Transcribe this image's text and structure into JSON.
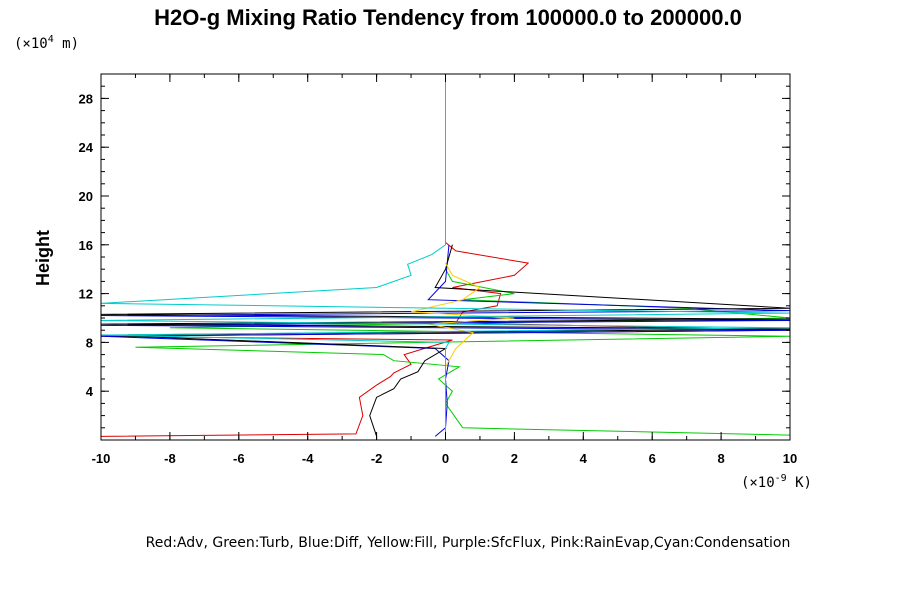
{
  "chart_data": {
    "type": "line",
    "title": "H2O-g Mixing Ratio Tendency from 100000.0 to 200000.0",
    "ylabel": "Height",
    "yunit_base": "(×10",
    "yunit_exp": "4",
    "yunit_tail": " m)",
    "xunit_base": "(×10",
    "xunit_exp": "-9",
    "xunit_tail": " K)",
    "xlim": [
      -10,
      10
    ],
    "ylim": [
      0,
      30
    ],
    "xticks": [
      -10,
      -8,
      -6,
      -4,
      -2,
      0,
      2,
      4,
      6,
      8,
      10
    ],
    "yticks": [
      4,
      8,
      12,
      16,
      20,
      24,
      28
    ],
    "legend_text": "Red:Adv, Green:Turb, Blue:Diff, Yellow:Fill, Purple:SfcFlux, Pink:RainEvap,Cyan:Condensation",
    "series": [
      {
        "color": "#dd0000",
        "x": [
          -10,
          -2.6,
          -2.4,
          -2.5,
          -2,
          -1.6,
          -1.5,
          -1,
          -1.2,
          -0.5,
          0.2,
          -10,
          10,
          0.3,
          0.5,
          1.5,
          1.6,
          0.2,
          2,
          2.4,
          0.3,
          0
        ],
        "y": [
          0.3,
          0.5,
          2,
          3.5,
          4.5,
          5.2,
          5.5,
          6.2,
          7.0,
          7.6,
          8.2,
          8.5,
          9.0,
          9.6,
          10.5,
          11.0,
          12.0,
          12.5,
          13.5,
          14.5,
          15.5,
          16.2
        ]
      },
      {
        "color": "#00cc00",
        "x": [
          10,
          0.5,
          0.3,
          0,
          0.2,
          -0.2,
          0.4,
          -1.5,
          -1.8,
          -9,
          10,
          -8,
          10,
          7,
          0.5,
          2,
          0.2,
          0
        ],
        "y": [
          0.4,
          1.0,
          1.8,
          3.0,
          4.0,
          5.0,
          6.0,
          6.5,
          7.0,
          7.6,
          8.5,
          9.2,
          10.0,
          10.8,
          11.5,
          12.0,
          13.0,
          14.0
        ]
      },
      {
        "color": "#0000dd",
        "x": [
          -0.3,
          0,
          0.05,
          0,
          0.1,
          -0.3,
          -10,
          10,
          -10,
          10,
          -10,
          10,
          -0.5,
          0,
          0.1
        ],
        "y": [
          0.3,
          1.0,
          3.0,
          5.0,
          6.5,
          7.5,
          8.5,
          9.0,
          9.4,
          9.8,
          10.2,
          10.6,
          11.5,
          13.0,
          16.0
        ]
      },
      {
        "color": "#000000",
        "x": [
          -2,
          -2.2,
          -2.0,
          -1.5,
          -1.3,
          -0.8,
          -0.6,
          0,
          -10,
          10,
          -10,
          10,
          -10,
          10,
          -0.3,
          0,
          0.2
        ],
        "y": [
          0.3,
          2.0,
          3.5,
          4.2,
          5.0,
          5.6,
          6.5,
          7.5,
          8.6,
          9.1,
          9.5,
          9.9,
          10.3,
          10.8,
          12.5,
          14.0,
          16.0
        ]
      },
      {
        "color": "#ffcc00",
        "x": [
          0,
          0.3,
          0.8,
          -0.5,
          2,
          -1,
          0.5,
          1,
          0.2,
          0
        ],
        "y": [
          6.0,
          7.5,
          8.8,
          9.5,
          10.0,
          10.5,
          11.5,
          12.5,
          13.5,
          14.5
        ]
      },
      {
        "color": "#00cccc",
        "x": [
          0,
          0,
          0.1,
          -10,
          10,
          -10,
          10,
          -10,
          -2,
          -1,
          -1.1,
          -0.4,
          0,
          0
        ],
        "y": [
          0.2,
          7.5,
          8.0,
          8.6,
          9.2,
          9.8,
          10.4,
          11.2,
          12.5,
          13.5,
          14.4,
          15.2,
          16.0,
          30
        ]
      }
    ]
  }
}
